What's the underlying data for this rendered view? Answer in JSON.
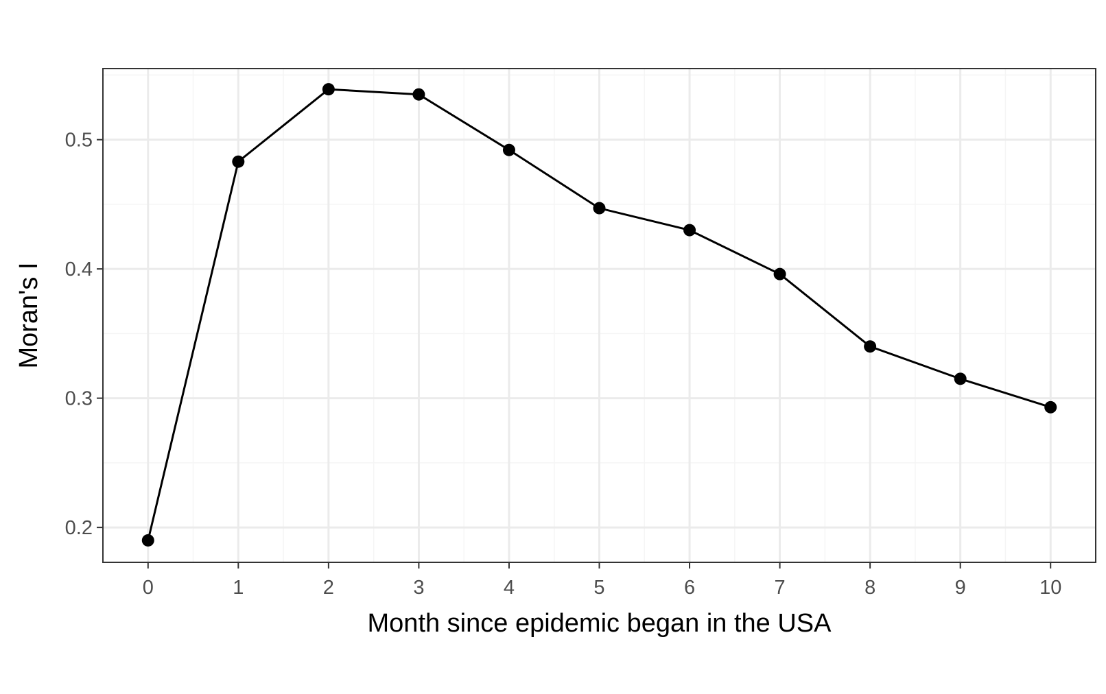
{
  "chart_data": {
    "type": "line",
    "title": "",
    "xlabel": "Month since epidemic began in the USA",
    "ylabel": "Moran's I",
    "x": [
      0,
      1,
      2,
      3,
      4,
      5,
      6,
      7,
      8,
      9,
      10
    ],
    "series": [
      {
        "values": [
          0.19,
          0.483,
          0.539,
          0.535,
          0.492,
          0.447,
          0.43,
          0.396,
          0.34,
          0.315,
          0.293
        ]
      }
    ],
    "x_ticks": [
      "0",
      "1",
      "2",
      "3",
      "4",
      "5",
      "6",
      "7",
      "8",
      "9",
      "10"
    ],
    "y_ticks": [
      "0.2",
      "0.3",
      "0.4",
      "0.5"
    ],
    "xlim": [
      -0.5,
      10.5
    ],
    "ylim": [
      0.173,
      0.555
    ],
    "grid": true,
    "legend": "none",
    "colors": {
      "line": "#000000",
      "point": "#000000",
      "grid_major": "#ebebeb",
      "grid_minor": "#f5f5f5",
      "panel_border": "#333333",
      "tick_text": "#4d4d4d"
    }
  }
}
